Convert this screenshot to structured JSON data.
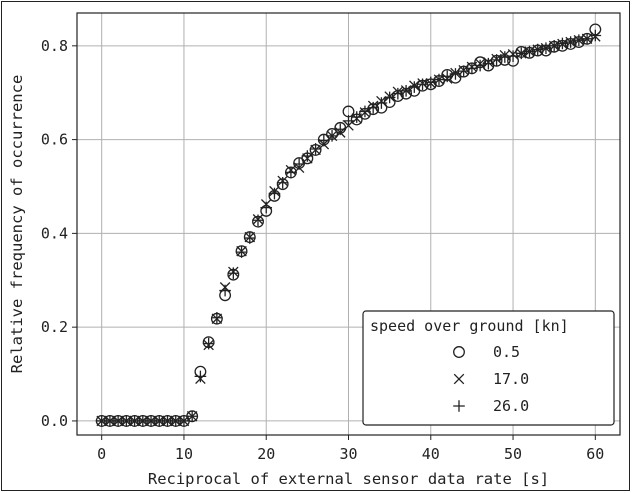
{
  "chart_data": {
    "type": "scatter",
    "title": "",
    "xlabel": "Reciprocal of external sensor data rate [s]",
    "ylabel": "Relative frequency of occurrence",
    "xlim": [
      -3,
      63
    ],
    "ylim": [
      -0.03,
      0.87
    ],
    "x_ticks": [
      0,
      10,
      20,
      30,
      40,
      50,
      60
    ],
    "y_ticks": [
      0.0,
      0.2,
      0.4,
      0.6,
      0.8
    ],
    "x_tick_labels": [
      "0",
      "10",
      "20",
      "30",
      "40",
      "50",
      "60"
    ],
    "y_tick_labels": [
      "0.0",
      "0.2",
      "0.4",
      "0.6",
      "0.8"
    ],
    "grid": true,
    "legend": {
      "title": "speed over ground [kn]",
      "placement": "lower-right"
    },
    "series": [
      {
        "name": "0.5",
        "marker": "circle",
        "x": [
          0,
          1,
          2,
          3,
          4,
          5,
          6,
          7,
          8,
          9,
          10,
          11,
          12,
          13,
          14,
          15,
          16,
          17,
          18,
          19,
          20,
          21,
          22,
          23,
          24,
          25,
          26,
          27,
          28,
          29,
          30,
          31,
          32,
          33,
          34,
          35,
          36,
          37,
          38,
          39,
          40,
          41,
          42,
          43,
          44,
          45,
          46,
          47,
          48,
          49,
          50,
          51,
          52,
          53,
          54,
          55,
          56,
          57,
          58,
          59,
          60
        ],
        "y": [
          0.0,
          0.0,
          0.0,
          0.0,
          0.0,
          0.0,
          0.0,
          0.0,
          0.0,
          0.0,
          0.0,
          0.01,
          0.105,
          0.168,
          0.218,
          0.268,
          0.312,
          0.362,
          0.392,
          0.425,
          0.448,
          0.48,
          0.505,
          0.53,
          0.55,
          0.56,
          0.578,
          0.6,
          0.612,
          0.625,
          0.66,
          0.643,
          0.655,
          0.665,
          0.668,
          0.68,
          0.693,
          0.698,
          0.704,
          0.715,
          0.718,
          0.725,
          0.738,
          0.732,
          0.745,
          0.752,
          0.765,
          0.758,
          0.768,
          0.77,
          0.768,
          0.787,
          0.785,
          0.79,
          0.79,
          0.798,
          0.8,
          0.804,
          0.808,
          0.815,
          0.835
        ]
      },
      {
        "name": "17.0",
        "marker": "x",
        "x": [
          0,
          1,
          2,
          3,
          4,
          5,
          6,
          7,
          8,
          9,
          10,
          11,
          12,
          13,
          14,
          15,
          16,
          17,
          18,
          19,
          20,
          21,
          22,
          23,
          24,
          25,
          26,
          27,
          28,
          29,
          30,
          31,
          32,
          33,
          34,
          35,
          36,
          37,
          38,
          39,
          40,
          41,
          42,
          43,
          44,
          45,
          46,
          47,
          48,
          49,
          50,
          51,
          52,
          53,
          54,
          55,
          56,
          57,
          58,
          59,
          60
        ],
        "y": [
          0.0,
          0.0,
          0.0,
          0.0,
          0.0,
          0.0,
          0.0,
          0.0,
          0.0,
          0.0,
          0.0,
          0.01,
          0.09,
          0.162,
          0.218,
          0.285,
          0.318,
          0.362,
          0.392,
          0.43,
          0.462,
          0.49,
          0.512,
          0.535,
          0.54,
          0.56,
          0.578,
          0.59,
          0.608,
          0.615,
          0.63,
          0.645,
          0.658,
          0.672,
          0.682,
          0.692,
          0.702,
          0.705,
          0.715,
          0.72,
          0.72,
          0.728,
          0.73,
          0.742,
          0.748,
          0.755,
          0.762,
          0.765,
          0.772,
          0.78,
          0.782,
          0.784,
          0.788,
          0.792,
          0.795,
          0.8,
          0.804,
          0.808,
          0.812,
          0.815,
          0.82
        ]
      },
      {
        "name": "26.0",
        "marker": "plus",
        "x": [
          0,
          1,
          2,
          3,
          4,
          5,
          6,
          7,
          8,
          9,
          10,
          11,
          12,
          13,
          14,
          15,
          16,
          17,
          18,
          19,
          20,
          21,
          22,
          23,
          24,
          25,
          26,
          27,
          28,
          29,
          30,
          31,
          32,
          33,
          34,
          35,
          36,
          37,
          38,
          39,
          40,
          41,
          42,
          43,
          44,
          45,
          46,
          47,
          48,
          49,
          50,
          51,
          52,
          53,
          54,
          55,
          56,
          57,
          58,
          59,
          60
        ],
        "y": [
          0.0,
          0.0,
          0.0,
          0.0,
          0.0,
          0.0,
          0.0,
          0.0,
          0.0,
          0.0,
          0.0,
          0.01,
          0.095,
          0.165,
          0.22,
          0.278,
          0.315,
          0.36,
          0.39,
          0.428,
          0.455,
          0.485,
          0.508,
          0.53,
          0.548,
          0.565,
          0.58,
          0.598,
          0.608,
          0.622,
          0.64,
          0.648,
          0.66,
          0.668,
          0.678,
          0.69,
          0.698,
          0.704,
          0.712,
          0.718,
          0.722,
          0.728,
          0.735,
          0.74,
          0.746,
          0.752,
          0.758,
          0.762,
          0.77,
          0.776,
          0.778,
          0.784,
          0.788,
          0.792,
          0.795,
          0.8,
          0.805,
          0.808,
          0.812,
          0.815,
          0.822
        ]
      }
    ]
  }
}
